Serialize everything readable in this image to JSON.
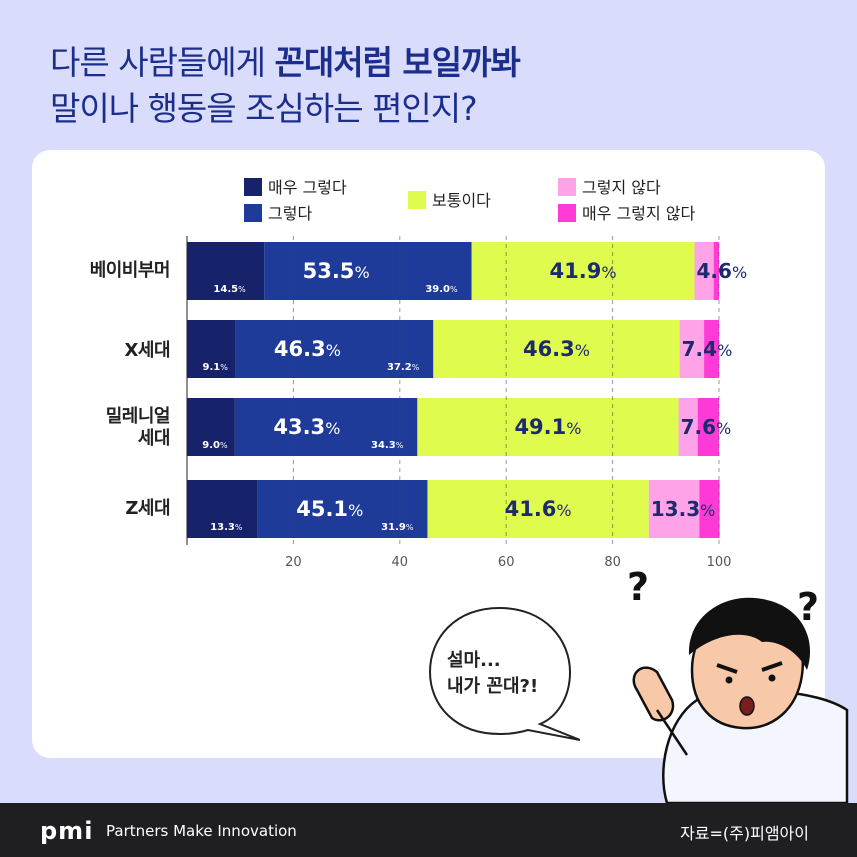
{
  "title": {
    "line1_normal": "다른 사람들에게 ",
    "line1_bold": "꼰대처럼 보일까봐",
    "line2": "말이나 행동을 조심하는 편인지?"
  },
  "legend": {
    "very_agree": "매우 그렇다",
    "agree": "그렇다",
    "neutral": "보통이다",
    "disagree": "그렇지 않다",
    "very_disagree": "매우 그렇지 않다"
  },
  "colors": {
    "very_agree": "#16236a",
    "agree": "#1f3b9a",
    "neutral": "#dffb4d",
    "disagree": "#ffa3e8",
    "very_disagree": "#ff3ad6"
  },
  "chart_data": {
    "type": "bar",
    "orientation": "horizontal-stacked",
    "categories": [
      "베이비부머",
      "X세대",
      "밀레니얼 세대",
      "Z세대"
    ],
    "series": [
      {
        "name": "매우 그렇다",
        "values": [
          14.5,
          9.1,
          9.0,
          13.3
        ]
      },
      {
        "name": "그렇다",
        "values": [
          39.0,
          37.2,
          34.3,
          31.9
        ]
      },
      {
        "name": "보통이다",
        "values": [
          41.9,
          46.3,
          49.1,
          41.6
        ]
      },
      {
        "name": "그렇지 않다",
        "values": [
          3.6,
          4.6,
          3.6,
          9.5
        ]
      },
      {
        "name": "매우 그렇지 않다",
        "values": [
          1.0,
          2.8,
          4.0,
          3.8
        ]
      }
    ],
    "category_labels": [
      [
        "베이비부머"
      ],
      [
        "X세대"
      ],
      [
        "밀레니얼",
        "세대"
      ],
      [
        "Z세대"
      ]
    ],
    "positive_total_labels": [
      "53.5",
      "46.3",
      "43.3",
      "45.1"
    ],
    "neutral_labels": [
      "41.9",
      "46.3",
      "49.1",
      "41.6"
    ],
    "negative_total_labels": [
      "4.6",
      "7.4",
      "7.6",
      "13.3"
    ],
    "very_agree_labels": [
      "14.5",
      "9.1",
      "9.0",
      "13.3"
    ],
    "agree_labels": [
      "39.0",
      "37.2",
      "34.3",
      "31.9"
    ],
    "percent_sign": "%",
    "xticks": [
      20,
      40,
      60,
      80,
      100
    ],
    "xlim": [
      0,
      100
    ],
    "grid": true,
    "legend_position": "top"
  },
  "bubble": {
    "line1": "설마...",
    "line2": "내가 꼰대?!"
  },
  "footer": {
    "logo": "pmi",
    "tagline": "Partners Make Innovation",
    "source": "자료=(주)피앰아이"
  }
}
